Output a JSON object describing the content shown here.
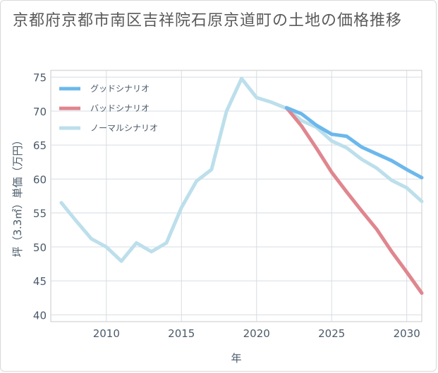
{
  "title": "京都府京都市南区吉祥院石原京道町の土地の価格推移",
  "chart_data": {
    "type": "line",
    "xlabel": "年",
    "ylabel": "坪（3.3㎡）単価（万円）",
    "xlim": [
      2006.3,
      2031
    ],
    "ylim": [
      39,
      76
    ],
    "xticks": [
      2010,
      2015,
      2020,
      2025,
      2030
    ],
    "yticks": [
      40,
      45,
      50,
      55,
      60,
      65,
      70,
      75
    ],
    "grid": true,
    "legend_position": "top-left",
    "series": [
      {
        "name": "グッドシナリオ",
        "color": "#6bb8ec",
        "x": [
          2022,
          2023,
          2024,
          2025,
          2026,
          2027,
          2028,
          2029,
          2030,
          2031
        ],
        "y": [
          70.5,
          69.6,
          67.9,
          66.6,
          66.3,
          64.7,
          63.7,
          62.7,
          61.4,
          60.2
        ]
      },
      {
        "name": "バッドシナリオ",
        "color": "#e0868e",
        "x": [
          2022,
          2023,
          2024,
          2025,
          2026,
          2027,
          2028,
          2029,
          2030,
          2031
        ],
        "y": [
          70.5,
          67.8,
          64.5,
          61.0,
          58.1,
          55.3,
          52.6,
          49.3,
          46.3,
          43.2
        ]
      },
      {
        "name": "ノーマルシナリオ",
        "color": "#bcdfeb",
        "x": [
          2007,
          2008,
          2009,
          2010,
          2011,
          2012,
          2013,
          2014,
          2015,
          2016,
          2017,
          2018,
          2019,
          2020,
          2021,
          2022,
          2023,
          2024,
          2025,
          2026,
          2027,
          2028,
          2029,
          2030,
          2031
        ],
        "y": [
          56.5,
          53.8,
          51.2,
          50.0,
          47.9,
          50.6,
          49.3,
          50.6,
          55.8,
          59.7,
          61.4,
          70.0,
          74.8,
          72.0,
          71.3,
          70.4,
          68.6,
          67.6,
          65.6,
          64.6,
          62.9,
          61.6,
          59.8,
          58.7,
          56.7
        ]
      }
    ]
  }
}
